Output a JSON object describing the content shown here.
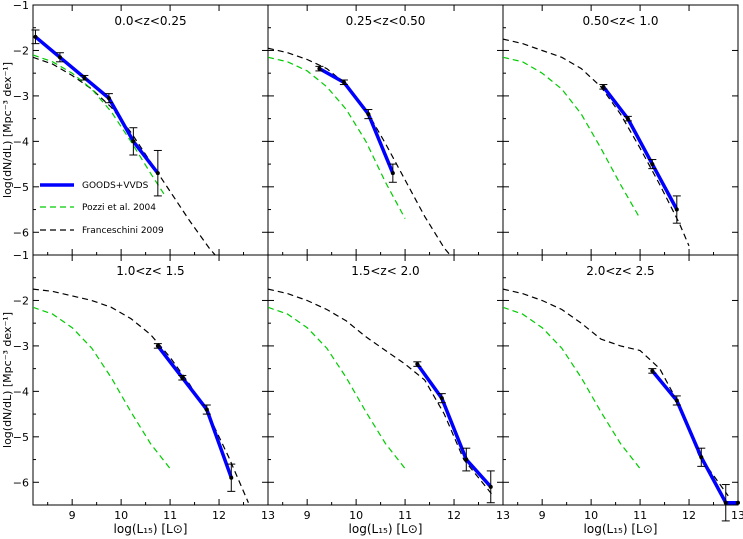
{
  "figure": {
    "ylabel_rows": [
      "log(dN/dL)  [Mpc⁻³ dex⁻¹]",
      "log(dN/dL)  [Mpc⁻³ dex⁻¹]"
    ],
    "xlabel_cols": [
      "log(L₁₅)  [L⊙]",
      "log(L₁₅)  [L⊙]",
      "log(L₁₅)  [L⊙]"
    ],
    "legend": [
      {
        "label": "GOODS+VVDS",
        "color": "#0000ff",
        "style": "solid"
      },
      {
        "label": "Pozzi et al. 2004",
        "color": "#00cc00",
        "style": "dashed"
      },
      {
        "label": "Franceschini 2009",
        "color": "#000000",
        "style": "dashed"
      }
    ]
  },
  "chart_data": [
    {
      "type": "line",
      "title": "0.0<z<0.25",
      "xlim": [
        8.2,
        13
      ],
      "ylim": [
        -6.5,
        -1
      ],
      "x_ticks": [
        "9",
        "10",
        "11",
        "12",
        "13"
      ],
      "y_ticks": [
        "−1",
        "−2",
        "−3",
        "−4",
        "−5",
        "−6"
      ],
      "series": [
        {
          "name": "GOODS+VVDS",
          "color": "#0000ff",
          "x": [
            8.25,
            8.75,
            9.25,
            9.75,
            10.25,
            10.75
          ],
          "y": [
            -1.7,
            -2.15,
            -2.6,
            -3.05,
            -4.0,
            -4.7
          ],
          "err_up": [
            0.15,
            0.1,
            0.05,
            0.1,
            0.3,
            0.5
          ],
          "err_down": [
            0.15,
            0.1,
            0.05,
            0.1,
            0.3,
            0.5
          ]
        },
        {
          "name": "Pozzi et al. 2004",
          "color": "#00cc00",
          "x": [
            8.2,
            8.6,
            9.0,
            9.4,
            9.8,
            10.2,
            10.6,
            10.9
          ],
          "y": [
            -2.1,
            -2.25,
            -2.5,
            -2.85,
            -3.35,
            -4.0,
            -4.7,
            -5.2
          ]
        },
        {
          "name": "Franceschini 2009",
          "color": "#000000",
          "x": [
            8.2,
            8.6,
            9.0,
            9.4,
            9.8,
            10.2,
            10.6,
            11.0,
            11.4,
            11.8,
            12.0
          ],
          "y": [
            -2.15,
            -2.3,
            -2.55,
            -2.85,
            -3.25,
            -3.8,
            -4.45,
            -5.1,
            -5.75,
            -6.35,
            -6.6
          ]
        }
      ]
    },
    {
      "type": "line",
      "title": "0.25<z<0.50",
      "xlim": [
        8.2,
        13
      ],
      "ylim": [
        -6.5,
        -1
      ],
      "x_ticks": [
        "9",
        "10",
        "11",
        "12",
        "13"
      ],
      "y_ticks": [
        "−1",
        "−2",
        "−3",
        "−4",
        "−5",
        "−6"
      ],
      "series": [
        {
          "name": "GOODS+VVDS",
          "color": "#0000ff",
          "x": [
            9.25,
            9.75,
            10.25,
            10.75
          ],
          "y": [
            -2.4,
            -2.7,
            -3.4,
            -4.7
          ],
          "err_up": [
            0.05,
            0.05,
            0.1,
            0.2
          ],
          "err_down": [
            0.05,
            0.05,
            0.1,
            0.2
          ]
        },
        {
          "name": "Pozzi et al. 2004",
          "color": "#00cc00",
          "x": [
            8.2,
            8.6,
            9.0,
            9.4,
            9.8,
            10.2,
            10.6,
            11.0
          ],
          "y": [
            -2.15,
            -2.25,
            -2.45,
            -2.8,
            -3.3,
            -4.0,
            -4.9,
            -5.7
          ]
        },
        {
          "name": "Franceschini 2009",
          "color": "#000000",
          "x": [
            8.2,
            8.6,
            9.0,
            9.4,
            9.8,
            10.2,
            10.6,
            11.0,
            11.4,
            11.8,
            12.0
          ],
          "y": [
            -1.95,
            -2.05,
            -2.2,
            -2.4,
            -2.75,
            -3.3,
            -4.05,
            -4.85,
            -5.65,
            -6.35,
            -6.6
          ]
        }
      ]
    },
    {
      "type": "line",
      "title": "0.50<z< 1.0",
      "xlim": [
        8.2,
        13
      ],
      "ylim": [
        -6.5,
        -1
      ],
      "x_ticks": [
        "9",
        "10",
        "11",
        "12",
        "13"
      ],
      "y_ticks": [
        "−1",
        "−2",
        "−3",
        "−4",
        "−5",
        "−6"
      ],
      "series": [
        {
          "name": "GOODS+VVDS",
          "color": "#0000ff",
          "x": [
            10.25,
            10.75,
            11.25,
            11.75
          ],
          "y": [
            -2.8,
            -3.5,
            -4.5,
            -5.5
          ],
          "err_up": [
            0.05,
            0.05,
            0.1,
            0.3
          ],
          "err_down": [
            0.05,
            0.05,
            0.1,
            0.3
          ]
        },
        {
          "name": "Pozzi et al. 2004",
          "color": "#00cc00",
          "x": [
            8.2,
            8.6,
            9.0,
            9.4,
            9.8,
            10.2,
            10.6,
            11.0
          ],
          "y": [
            -2.15,
            -2.25,
            -2.5,
            -2.85,
            -3.4,
            -4.15,
            -4.95,
            -5.7
          ]
        },
        {
          "name": "Franceschini 2009",
          "color": "#000000",
          "x": [
            8.2,
            8.6,
            9.0,
            9.4,
            9.8,
            10.2,
            10.6,
            11.0,
            11.4,
            11.8,
            12.0
          ],
          "y": [
            -1.75,
            -1.85,
            -2.0,
            -2.15,
            -2.4,
            -2.8,
            -3.4,
            -4.15,
            -4.95,
            -5.8,
            -6.3
          ]
        }
      ]
    },
    {
      "type": "line",
      "title": "1.0<z< 1.5",
      "xlim": [
        8.2,
        13
      ],
      "ylim": [
        -6.5,
        -1
      ],
      "x_ticks": [
        "9",
        "10",
        "11",
        "12",
        "13"
      ],
      "y_ticks": [
        "−1",
        "−2",
        "−3",
        "−4",
        "−5",
        "−6"
      ],
      "series": [
        {
          "name": "GOODS+VVDS",
          "color": "#0000ff",
          "x": [
            10.75,
            11.25,
            11.75,
            12.25
          ],
          "y": [
            -3.0,
            -3.7,
            -4.4,
            -5.9
          ],
          "err_up": [
            0.05,
            0.05,
            0.1,
            0.3
          ],
          "err_down": [
            0.05,
            0.05,
            0.1,
            0.3
          ]
        },
        {
          "name": "Pozzi et al. 2004",
          "color": "#00cc00",
          "x": [
            8.2,
            8.6,
            9.0,
            9.4,
            9.8,
            10.2,
            10.6,
            11.0
          ],
          "y": [
            -2.15,
            -2.3,
            -2.6,
            -3.05,
            -3.7,
            -4.45,
            -5.15,
            -5.7
          ]
        },
        {
          "name": "Franceschini 2009",
          "color": "#000000",
          "x": [
            8.2,
            8.6,
            9.0,
            9.4,
            9.8,
            10.2,
            10.6,
            11.0,
            11.4,
            11.8,
            12.2,
            12.6
          ],
          "y": [
            -1.75,
            -1.8,
            -1.9,
            -2.0,
            -2.15,
            -2.4,
            -2.75,
            -3.25,
            -3.85,
            -4.55,
            -5.45,
            -6.45
          ]
        }
      ]
    },
    {
      "type": "line",
      "title": "1.5<z< 2.0",
      "xlim": [
        8.2,
        13
      ],
      "ylim": [
        -6.5,
        -1
      ],
      "x_ticks": [
        "9",
        "10",
        "11",
        "12",
        "13"
      ],
      "y_ticks": [
        "−1",
        "−2",
        "−3",
        "−4",
        "−5",
        "−6"
      ],
      "series": [
        {
          "name": "GOODS+VVDS",
          "color": "#0000ff",
          "x": [
            11.25,
            11.75,
            12.25,
            12.75
          ],
          "y": [
            -3.4,
            -4.15,
            -5.5,
            -6.1
          ],
          "err_up": [
            0.05,
            0.1,
            0.25,
            0.35
          ],
          "err_down": [
            0.05,
            0.1,
            0.25,
            0.35
          ]
        },
        {
          "name": "Pozzi et al. 2004",
          "color": "#00cc00",
          "x": [
            8.2,
            8.6,
            9.0,
            9.4,
            9.8,
            10.2,
            10.6,
            11.0
          ],
          "y": [
            -2.15,
            -2.3,
            -2.6,
            -3.05,
            -3.7,
            -4.45,
            -5.15,
            -5.7
          ]
        },
        {
          "name": "Franceschini 2009",
          "color": "#000000",
          "x": [
            8.2,
            8.6,
            9.0,
            9.4,
            9.8,
            10.2,
            10.6,
            11.0,
            11.4,
            11.8,
            12.2,
            12.8
          ],
          "y": [
            -1.75,
            -1.85,
            -2.0,
            -2.2,
            -2.45,
            -2.8,
            -3.1,
            -3.4,
            -3.75,
            -4.5,
            -5.5,
            -6.3
          ]
        }
      ]
    },
    {
      "type": "line",
      "title": "2.0<z< 2.5",
      "xlim": [
        8.2,
        13
      ],
      "ylim": [
        -6.5,
        -1
      ],
      "x_ticks": [
        "9",
        "10",
        "11",
        "12",
        "13"
      ],
      "y_ticks": [
        "−1",
        "−2",
        "−3",
        "−4",
        "−5",
        "−6"
      ],
      "series": [
        {
          "name": "GOODS+VVDS",
          "color": "#0000ff",
          "x": [
            11.25,
            11.75,
            12.25,
            12.75,
            13.0
          ],
          "y": [
            -3.55,
            -4.2,
            -5.45,
            -6.45,
            -6.45
          ],
          "err_up": [
            0.05,
            0.1,
            0.2,
            0.4,
            0.0
          ],
          "err_down": [
            0.05,
            0.1,
            0.2,
            0.4,
            0.0
          ]
        },
        {
          "name": "Pozzi et al. 2004",
          "color": "#00cc00",
          "x": [
            8.2,
            8.6,
            9.0,
            9.4,
            9.8,
            10.2,
            10.6,
            11.0
          ],
          "y": [
            -2.15,
            -2.3,
            -2.6,
            -3.05,
            -3.7,
            -4.45,
            -5.15,
            -5.7
          ]
        },
        {
          "name": "Franceschini 2009",
          "color": "#000000",
          "x": [
            8.2,
            8.6,
            9.0,
            9.4,
            9.8,
            10.2,
            10.6,
            11.0,
            11.4,
            11.8,
            12.2,
            12.8
          ],
          "y": [
            -1.75,
            -1.85,
            -2.0,
            -2.2,
            -2.5,
            -2.85,
            -3.0,
            -3.1,
            -3.5,
            -4.3,
            -5.4,
            -6.3
          ]
        }
      ]
    }
  ]
}
